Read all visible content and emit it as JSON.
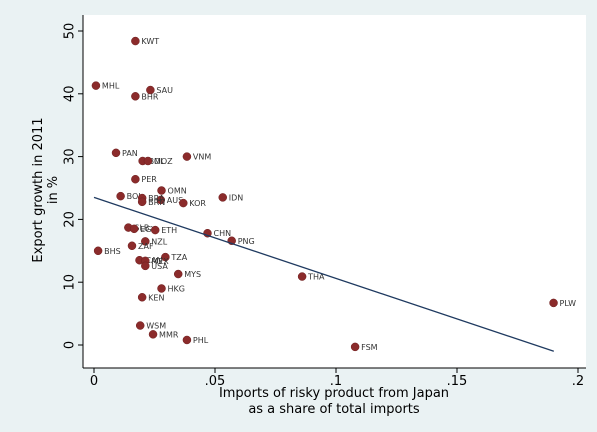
{
  "chart_data": {
    "type": "scatter",
    "title": "",
    "xlabel_lines": [
      "Imports of risky product from Japan",
      "as a share of total imports"
    ],
    "ylabel_lines": [
      "Export growth in 2011",
      "in %"
    ],
    "xlim": [
      0,
      0.2
    ],
    "ylim": [
      0,
      50
    ],
    "x_ticks": [
      {
        "value": 0,
        "label": "0"
      },
      {
        "value": 0.05,
        "label": ".05"
      },
      {
        "value": 0.1,
        "label": ".1"
      },
      {
        "value": 0.15,
        "label": ".15"
      },
      {
        "value": 0.2,
        "label": ".2"
      }
    ],
    "y_ticks": [
      {
        "value": 0,
        "label": "0"
      },
      {
        "value": 10,
        "label": "10"
      },
      {
        "value": 20,
        "label": "20"
      },
      {
        "value": 30,
        "label": "30"
      },
      {
        "value": 40,
        "label": "40"
      },
      {
        "value": 50,
        "label": "50"
      }
    ],
    "grid": false,
    "legend": "none",
    "marker_color": "#8b2b2b",
    "line_color": "#1f3a60",
    "fit_line": {
      "x": [
        0,
        0.19
      ],
      "y": [
        23.5,
        -1.0
      ]
    },
    "points": [
      {
        "label": "KWT",
        "x": 0.0171,
        "y": 48.4
      },
      {
        "label": "MHL",
        "x": 0.0008,
        "y": 41.3
      },
      {
        "label": "SAU",
        "x": 0.0233,
        "y": 40.6
      },
      {
        "label": "BHR",
        "x": 0.0171,
        "y": 39.6
      },
      {
        "label": "PAN",
        "x": 0.0091,
        "y": 30.6
      },
      {
        "label": "VNM",
        "x": 0.0384,
        "y": 30.0
      },
      {
        "label": "BOL",
        "x": 0.0201,
        "y": 29.3
      },
      {
        "label": "MOZ",
        "x": 0.0223,
        "y": 29.3
      },
      {
        "label": "PER",
        "x": 0.0171,
        "y": 26.4
      },
      {
        "label": "OMN",
        "x": 0.0279,
        "y": 24.6
      },
      {
        "label": "BOL",
        "x": 0.011,
        "y": 23.7
      },
      {
        "label": "AUS",
        "x": 0.0276,
        "y": 23.1
      },
      {
        "label": "BRA",
        "x": 0.0199,
        "y": 23.4
      },
      {
        "label": "IDN",
        "x": 0.0532,
        "y": 23.5
      },
      {
        "label": "KOR",
        "x": 0.0369,
        "y": 22.6
      },
      {
        "label": "BRN",
        "x": 0.0199,
        "y": 22.8
      },
      {
        "label": "SLB",
        "x": 0.0142,
        "y": 18.7
      },
      {
        "label": "EGY",
        "x": 0.0166,
        "y": 18.5
      },
      {
        "label": "ETH",
        "x": 0.0253,
        "y": 18.3
      },
      {
        "label": "CHN",
        "x": 0.0469,
        "y": 17.8
      },
      {
        "label": "PNG",
        "x": 0.0569,
        "y": 16.6
      },
      {
        "label": "NZL",
        "x": 0.0212,
        "y": 16.5
      },
      {
        "label": "ZAF",
        "x": 0.0157,
        "y": 15.8
      },
      {
        "label": "BHS",
        "x": 0.0017,
        "y": 15.0
      },
      {
        "label": "TZA",
        "x": 0.0295,
        "y": 14.0
      },
      {
        "label": "CAN",
        "x": 0.0188,
        "y": 13.5
      },
      {
        "label": "MEX",
        "x": 0.0212,
        "y": 13.4
      },
      {
        "label": "USA",
        "x": 0.0212,
        "y": 12.6
      },
      {
        "label": "MYS",
        "x": 0.0348,
        "y": 11.3
      },
      {
        "label": "THA",
        "x": 0.086,
        "y": 10.9
      },
      {
        "label": "HKG",
        "x": 0.0279,
        "y": 9.0
      },
      {
        "label": "KEN",
        "x": 0.0199,
        "y": 7.6
      },
      {
        "label": "PLW",
        "x": 0.1899,
        "y": 6.7
      },
      {
        "label": "WSM",
        "x": 0.0191,
        "y": 3.1
      },
      {
        "label": "MMR",
        "x": 0.0244,
        "y": 1.7
      },
      {
        "label": "PHL",
        "x": 0.0384,
        "y": 0.8
      },
      {
        "label": "FSM",
        "x": 0.1079,
        "y": -0.3
      }
    ]
  }
}
